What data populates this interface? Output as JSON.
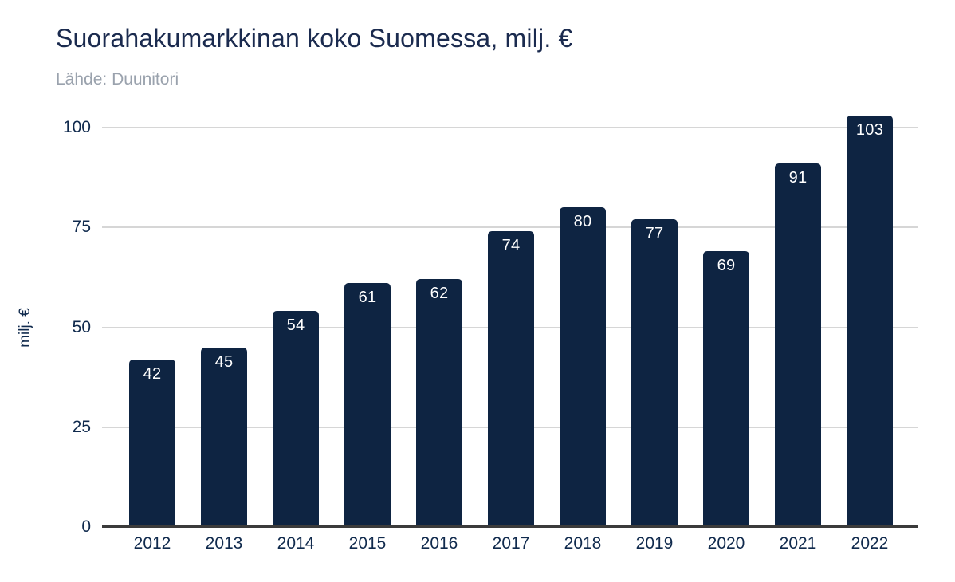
{
  "header": {
    "title": "Suorahakumarkkinan koko Suomessa, milj. €",
    "subtitle": "Lähde: Duunitori"
  },
  "chart_data": {
    "type": "bar",
    "categories": [
      "2012",
      "2013",
      "2014",
      "2015",
      "2016",
      "2017",
      "2018",
      "2019",
      "2020",
      "2021",
      "2022"
    ],
    "values": [
      42,
      45,
      54,
      61,
      62,
      74,
      80,
      77,
      69,
      91,
      103
    ],
    "title": "Suorahakumarkkinan koko Suomessa, milj. €",
    "subtitle": "Lähde: Duunitori",
    "xlabel": "",
    "ylabel": "milj. €",
    "ylim": [
      0,
      100
    ],
    "yticks": [
      0,
      25,
      50,
      75,
      100
    ],
    "grid": true,
    "legend": "none",
    "value_labels": "inside-top"
  },
  "colors": {
    "bg": "#ffffff",
    "bar-color": "#0e2442",
    "title-color": "#1b2b4f",
    "subtitle-color": "#9aa2ad",
    "axis-color": "#102a4d",
    "grid-color": "#d6d6d6",
    "baseline-color": "#3b3b3b",
    "value-color": "#ffffff"
  }
}
